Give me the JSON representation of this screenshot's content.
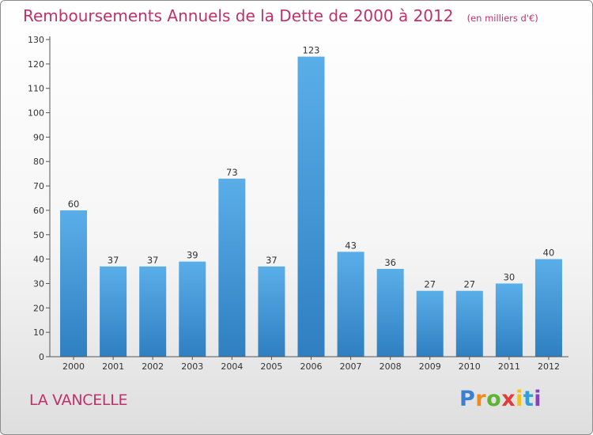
{
  "header": {
    "title": "Remboursements Annuels de la Dette de 2000 à 2012",
    "unit": "(en milliers d'€)"
  },
  "footer": {
    "place": "LA VANCELLE",
    "logo": "Proxiti"
  },
  "colors": {
    "title": "#c0306a",
    "bar_top": "#5aaee8",
    "bar_bottom": "#2f7fc1"
  },
  "chart_data": {
    "type": "bar",
    "categories": [
      "2000",
      "2001",
      "2002",
      "2003",
      "2004",
      "2005",
      "2006",
      "2007",
      "2008",
      "2009",
      "2010",
      "2011",
      "2012"
    ],
    "values": [
      60,
      37,
      37,
      39,
      73,
      37,
      123,
      43,
      36,
      27,
      27,
      30,
      40
    ],
    "title": "Remboursements Annuels de la Dette de 2000 à 2012",
    "ylim": [
      0,
      130
    ],
    "yticks": [
      0,
      10,
      20,
      30,
      40,
      50,
      60,
      70,
      80,
      90,
      100,
      110,
      120,
      130
    ],
    "data_labels": true,
    "grid": false,
    "legend": "none"
  }
}
